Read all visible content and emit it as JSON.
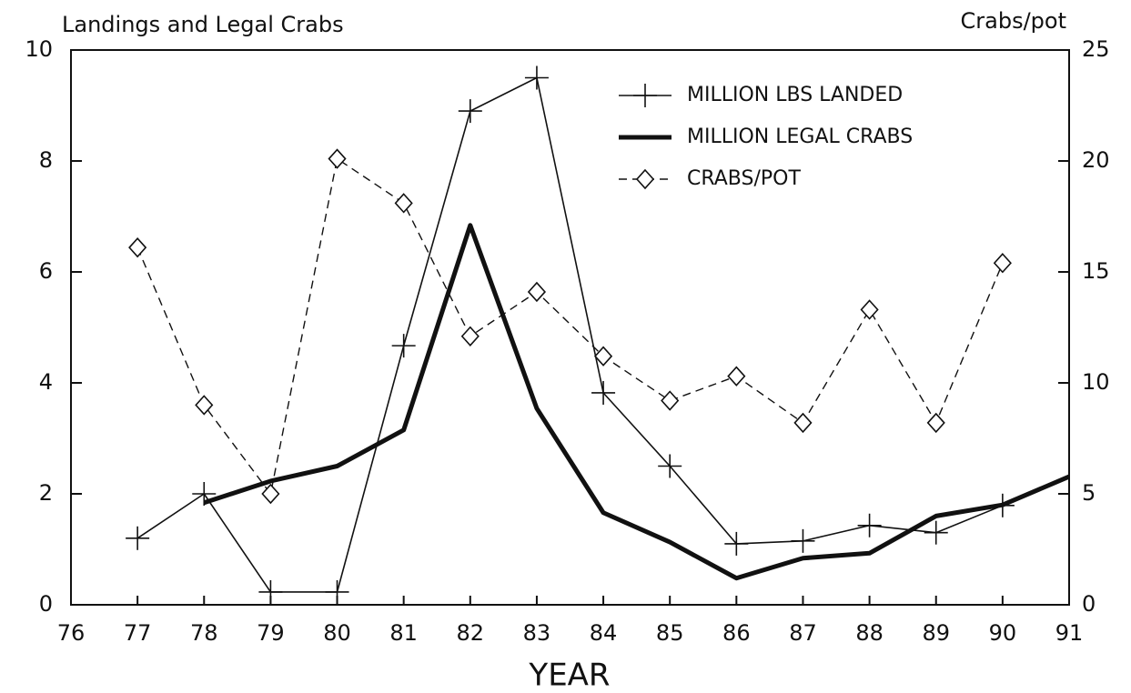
{
  "chart_data": {
    "type": "line",
    "title": "Landings and Legal Crabs",
    "y2_label": "Crabs/pot",
    "x_label": "YEAR",
    "x": [
      77,
      78,
      79,
      80,
      81,
      82,
      83,
      84,
      85,
      86,
      87,
      88,
      89,
      90,
      91
    ],
    "xlim": [
      76,
      91
    ],
    "xticks": [
      76,
      77,
      78,
      79,
      80,
      81,
      82,
      83,
      84,
      85,
      86,
      87,
      88,
      89,
      90,
      91
    ],
    "ylim": [
      0,
      10
    ],
    "yticks": [
      0,
      2,
      4,
      6,
      8,
      10
    ],
    "y2lim": [
      0,
      25
    ],
    "y2ticks": [
      0,
      5,
      10,
      15,
      20,
      25
    ],
    "grid": false,
    "legend": "upper right",
    "series": [
      {
        "name": "MILLION LBS LANDED",
        "color": "#111111",
        "marker": "plus",
        "style": "solid",
        "values": [
          1.2,
          2.0,
          0.23,
          0.23,
          4.67,
          8.9,
          9.5,
          3.82,
          2.5,
          1.1,
          1.15,
          1.43,
          1.3,
          1.79,
          null
        ]
      },
      {
        "name": "MILLION LEGAL CRABS",
        "color": "#111111",
        "marker": "none",
        "style": "thick",
        "values": [
          null,
          1.84,
          2.23,
          2.5,
          3.15,
          6.84,
          3.54,
          1.66,
          1.13,
          0.48,
          0.84,
          0.93,
          1.6,
          1.8,
          2.31
        ]
      },
      {
        "name": "CRABS/POT",
        "color": "#111111",
        "marker": "diamond",
        "style": "dashed",
        "axis": "y2",
        "values": [
          16.1,
          9.0,
          5.0,
          20.1,
          18.1,
          12.1,
          14.1,
          11.2,
          9.2,
          10.3,
          8.2,
          13.3,
          8.2,
          15.4,
          null
        ]
      }
    ]
  }
}
